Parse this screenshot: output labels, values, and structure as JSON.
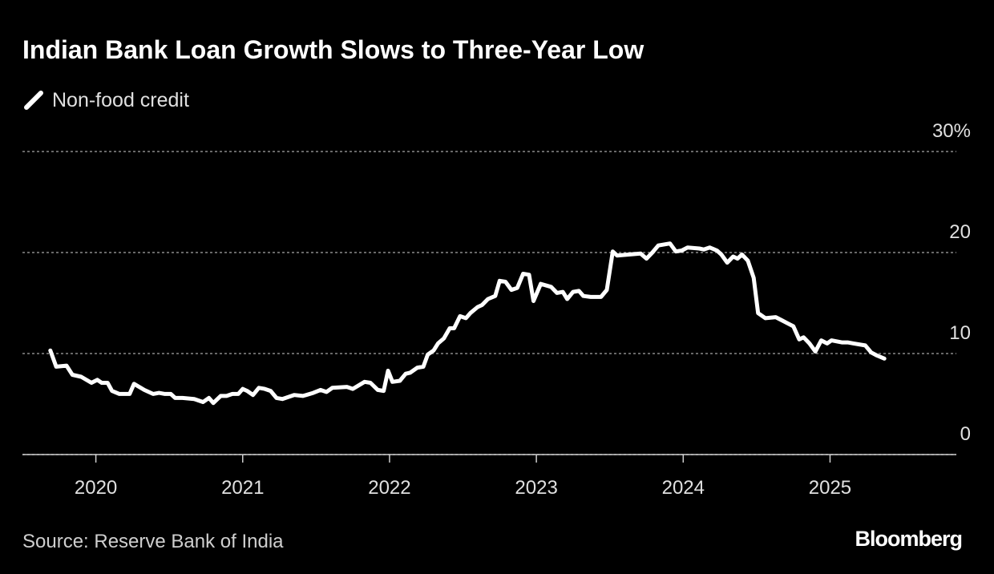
{
  "chart_data": {
    "type": "line",
    "title": "Indian Bank Loan Growth Slows to Three-Year Low",
    "source": "Source: Reserve Bank of India",
    "brand": "Bloomberg",
    "xlim": [
      2019.5,
      2025.86
    ],
    "xticks": [
      2020,
      2021,
      2022,
      2023,
      2024,
      2025
    ],
    "ylim": [
      0,
      30
    ],
    "yticks": [
      0,
      10,
      20,
      {
        "value": 30,
        "label": "30%"
      }
    ],
    "grid": true,
    "x": [
      2019.69,
      2019.73,
      2019.8,
      2019.84,
      2019.9,
      2019.97,
      2020.01,
      2020.04,
      2020.08,
      2020.11,
      2020.16,
      2020.23,
      2020.26,
      2020.33,
      2020.39,
      2020.43,
      2020.47,
      2020.51,
      2020.54,
      2020.59,
      2020.67,
      2020.73,
      2020.77,
      2020.8,
      2020.85,
      2020.89,
      2020.93,
      2020.97,
      2021.0,
      2021.03,
      2021.07,
      2021.11,
      2021.15,
      2021.19,
      2021.23,
      2021.27,
      2021.35,
      2021.41,
      2021.48,
      2021.53,
      2021.57,
      2021.61,
      2021.71,
      2021.75,
      2021.83,
      2021.87,
      2021.92,
      2021.96,
      2021.99,
      2022.02,
      2022.07,
      2022.11,
      2022.14,
      2022.19,
      2022.23,
      2022.26,
      2022.3,
      2022.33,
      2022.37,
      2022.41,
      2022.44,
      2022.48,
      2022.52,
      2022.55,
      2022.6,
      2022.63,
      2022.67,
      2022.72,
      2022.75,
      2022.79,
      2022.83,
      2022.87,
      2022.91,
      2022.95,
      2022.98,
      2023.03,
      2023.1,
      2023.14,
      2023.18,
      2023.21,
      2023.25,
      2023.29,
      2023.32,
      2023.37,
      2023.44,
      2023.48,
      2023.52,
      2023.55,
      2023.63,
      2023.71,
      2023.75,
      2023.79,
      2023.83,
      2023.91,
      2023.95,
      2023.99,
      2024.03,
      2024.11,
      2024.14,
      2024.18,
      2024.23,
      2024.26,
      2024.3,
      2024.34,
      2024.37,
      2024.4,
      2024.44,
      2024.48,
      2024.51,
      2024.56,
      2024.63,
      2024.67,
      2024.71,
      2024.75,
      2024.79,
      2024.82,
      2024.86,
      2024.9,
      2024.94,
      2024.98,
      2025.01,
      2025.08,
      2025.12,
      2025.16,
      2025.24,
      2025.28,
      2025.32,
      2025.37
    ],
    "series": [
      {
        "name": "Non-food credit",
        "color": "#ffffff",
        "values": [
          10.3,
          8.7,
          8.8,
          7.9,
          7.7,
          7.1,
          7.4,
          7.1,
          7.1,
          6.3,
          6.0,
          6.0,
          7.0,
          6.4,
          6.0,
          6.1,
          6.0,
          6.0,
          5.6,
          5.6,
          5.5,
          5.2,
          5.6,
          5.1,
          5.8,
          5.8,
          6.0,
          6.0,
          6.5,
          6.3,
          5.9,
          6.6,
          6.5,
          6.3,
          5.6,
          5.5,
          5.9,
          5.8,
          6.1,
          6.4,
          6.2,
          6.6,
          6.7,
          6.5,
          7.2,
          7.1,
          6.4,
          6.3,
          8.3,
          7.2,
          7.3,
          8.0,
          8.1,
          8.6,
          8.7,
          9.9,
          10.3,
          11.0,
          11.5,
          12.5,
          12.5,
          13.7,
          13.5,
          14.0,
          14.6,
          14.8,
          15.4,
          15.7,
          17.2,
          17.1,
          16.3,
          16.5,
          17.9,
          17.8,
          15.2,
          16.9,
          16.6,
          16.0,
          16.1,
          15.4,
          16.1,
          16.2,
          15.7,
          15.6,
          15.6,
          16.3,
          20.1,
          19.7,
          19.8,
          19.9,
          19.4,
          20.0,
          20.7,
          20.9,
          20.1,
          20.2,
          20.5,
          20.4,
          20.3,
          20.5,
          20.2,
          19.8,
          19.0,
          19.6,
          19.4,
          19.8,
          19.2,
          17.5,
          14.0,
          13.5,
          13.6,
          13.3,
          13.0,
          12.7,
          11.4,
          11.6,
          11.0,
          10.2,
          11.3,
          11.0,
          11.3,
          11.1,
          11.1,
          11.0,
          10.8,
          10.1,
          9.8,
          9.5
        ]
      }
    ]
  }
}
